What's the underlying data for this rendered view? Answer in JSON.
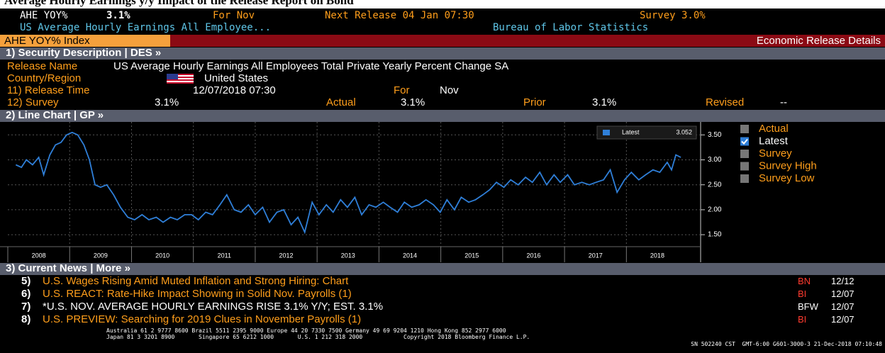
{
  "banner": "Average Hourly Earnings y/y Impact of the Release Report on Bond",
  "header": {
    "ticker": "AHE YOY%",
    "value": "3.1%",
    "for": "For Nov",
    "next_release": "Next Release 04 Jan 07:30",
    "survey": "Survey 3.0%",
    "name": "US Average Hourly Earnings All Employee...",
    "source": "Bureau of Labor Statistics",
    "index": "AHE YOY% Index",
    "page": "Economic Release Details"
  },
  "security": {
    "section": "1) Security Description | DES »",
    "release_name_label": "Release Name",
    "release_name": "US Average Hourly Earnings All Employees Total Private Yearly Percent Change SA",
    "country_label": "Country/Region",
    "country": "United States",
    "release_time_label": "11) Release Time",
    "release_time": "12/07/2018 07:30",
    "for_label": "For",
    "for": "Nov",
    "survey_label": "12) Survey",
    "survey": "3.1%",
    "actual_label": "Actual",
    "actual": "3.1%",
    "prior_label": "Prior",
    "prior": "3.1%",
    "revised_label": "Revised",
    "revised": "--"
  },
  "chart_data": {
    "type": "line",
    "section": "2) Line Chart | GP »",
    "x": [
      2008.13,
      2008.22,
      2008.3,
      2008.4,
      2008.5,
      2008.58,
      2008.68,
      2008.77,
      2008.86,
      2008.95,
      2009.04,
      2009.13,
      2009.23,
      2009.32,
      2009.41,
      2009.5,
      2009.6,
      2009.71,
      2009.82,
      2009.94,
      2010.05,
      2010.17,
      2010.28,
      2010.4,
      2010.51,
      2010.63,
      2010.74,
      2010.86,
      2010.97,
      2011.08,
      2011.2,
      2011.31,
      2011.43,
      2011.54,
      2011.66,
      2011.77,
      2011.89,
      2012.0,
      2012.12,
      2012.23,
      2012.35,
      2012.46,
      2012.58,
      2012.69,
      2012.8,
      2012.92,
      2013.03,
      2013.15,
      2013.26,
      2013.38,
      2013.49,
      2013.61,
      2013.72,
      2013.84,
      2013.95,
      2014.07,
      2014.18,
      2014.3,
      2014.41,
      2014.53,
      2014.65,
      2014.76,
      2014.88,
      2014.99,
      2015.1,
      2015.22,
      2015.33,
      2015.45,
      2015.56,
      2015.68,
      2015.79,
      2015.9,
      2016.02,
      2016.13,
      2016.25,
      2016.37,
      2016.48,
      2016.6,
      2016.71,
      2016.83,
      2016.93,
      2017.05,
      2017.16,
      2017.28,
      2017.4,
      2017.51,
      2017.63,
      2017.74,
      2017.85,
      2017.97,
      2018.08,
      2018.2,
      2018.31,
      2018.43,
      2018.54,
      2018.66,
      2018.73,
      2018.8,
      2018.88
    ],
    "series": [
      {
        "name": "Latest",
        "color": "#2f7fd8",
        "values": [
          2.9,
          2.85,
          3.0,
          2.9,
          3.05,
          2.7,
          3.1,
          3.3,
          3.35,
          3.5,
          3.55,
          3.5,
          3.3,
          3.0,
          2.5,
          2.45,
          2.5,
          2.3,
          2.05,
          1.85,
          1.8,
          1.9,
          1.8,
          1.85,
          1.75,
          1.85,
          1.8,
          1.9,
          1.9,
          1.8,
          1.95,
          1.9,
          2.1,
          2.3,
          2.0,
          1.95,
          2.1,
          1.9,
          2.05,
          1.75,
          1.95,
          2.0,
          1.7,
          1.85,
          1.55,
          2.15,
          1.9,
          2.1,
          1.95,
          2.2,
          2.05,
          2.25,
          1.9,
          2.1,
          2.05,
          2.15,
          2.05,
          1.95,
          2.15,
          2.05,
          2.1,
          2.2,
          2.1,
          1.95,
          2.2,
          2.0,
          2.25,
          2.15,
          2.2,
          2.3,
          2.4,
          2.55,
          2.45,
          2.6,
          2.5,
          2.65,
          2.55,
          2.75,
          2.5,
          2.7,
          2.55,
          2.7,
          2.5,
          2.55,
          2.5,
          2.55,
          2.6,
          2.8,
          2.35,
          2.6,
          2.75,
          2.6,
          2.7,
          2.8,
          2.75,
          2.95,
          2.8,
          3.1,
          3.05
        ]
      }
    ],
    "last_value": 3.052,
    "xlim": [
      2008.0,
      2019.2
    ],
    "xticks": [
      2008,
      2009,
      2010,
      2011,
      2012,
      2013,
      2014,
      2015,
      2016,
      2017,
      2018
    ],
    "ylim": [
      1.26,
      3.76
    ],
    "yticks": [
      {
        "value": 1.5,
        "label": "1.50"
      },
      {
        "value": 2.0,
        "label": "2.00"
      },
      {
        "value": 2.5,
        "label": "2.50"
      },
      {
        "value": 3.0,
        "label": "3.00"
      },
      {
        "value": 3.5,
        "label": "3.50"
      }
    ],
    "grid": true,
    "toggles": [
      {
        "label": "Actual",
        "checked": false
      },
      {
        "label": "Latest",
        "checked": true
      },
      {
        "label": "Survey",
        "checked": false
      },
      {
        "label": "Survey High",
        "checked": false
      },
      {
        "label": "Survey Low",
        "checked": false
      }
    ]
  },
  "news": {
    "section": "3) Current News | More »",
    "items": [
      {
        "num": "5)",
        "headline": "U.S. Wages Rising Amid Muted Inflation and Strong Hiring: Chart",
        "source": "BN",
        "date": "12/12"
      },
      {
        "num": "6)",
        "headline": "U.S. REACT: Rate-Hike Impact Showing in Solid Nov. Payrolls (1)",
        "source": "BI",
        "date": "12/07"
      },
      {
        "num": "7)",
        "headline": "*U.S. NOV. AVERAGE HOURLY EARNINGS RISE 3.1% Y/Y; EST. 3.1%",
        "source": "BFW",
        "date": "12/07"
      },
      {
        "num": "8)",
        "headline": "U.S. PREVIEW: Searching for 2019 Clues in November Payrolls (1)",
        "source": "BI",
        "date": "12/07"
      }
    ]
  },
  "footer": {
    "line1": "Australia 61 2 9777 8600 Brazil 5511 2395 9000 Europe 44 20 7330 7500 Germany 49 69 9204 1210 Hong Kong 852 2977 6000",
    "line2": "Japan 81 3 3201 8900       Singapore 65 6212 1000       U.S. 1 212 318 2000            Copyright 2018 Bloomberg Finance L.P.",
    "line3": "SN 502240 CST  GMT-6:00 G601-3000-3 21-Dec-2018 07:10:48"
  }
}
